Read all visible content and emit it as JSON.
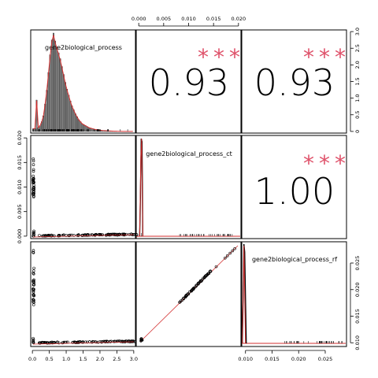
{
  "chart_data": {
    "type": "scatter-matrix",
    "variables": [
      "gene2biological_process",
      "gene2biological_process_ct",
      "gene2biological_process_rf"
    ],
    "correlations": [
      {
        "row": 0,
        "col": 1,
        "value": "0.93",
        "stars": "***"
      },
      {
        "row": 0,
        "col": 2,
        "value": "0.93",
        "stars": "***"
      },
      {
        "row": 1,
        "col": 2,
        "value": "1.00",
        "stars": "***"
      }
    ],
    "axes": {
      "bottom_left": {
        "ticks": [
          "0.0",
          "0.5",
          "1.0",
          "1.5",
          "2.0",
          "2.5",
          "3.0"
        ],
        "range": [
          -0.05,
          3.05
        ]
      },
      "top_middle": {
        "ticks": [
          "0.000",
          "0.005",
          "0.010",
          "0.015",
          "0.020"
        ],
        "range": [
          -0.0005,
          0.0205
        ]
      },
      "left_middle": {
        "ticks": [
          "0.000",
          "0.005",
          "0.010",
          "0.015",
          "0.020"
        ],
        "range": [
          -0.0005,
          0.0205
        ]
      },
      "right_top": {
        "ticks": [
          "0",
          "0.5",
          "1.0",
          "1.5",
          "2.0",
          "2.5",
          "3.0"
        ],
        "range": [
          -0.05,
          3.05
        ]
      },
      "right_bottom": {
        "ticks": [
          "0.010",
          "0.015",
          "0.020",
          "0.025"
        ],
        "range": [
          0.0093,
          0.029
        ]
      },
      "bottom_right": {
        "ticks": [
          "0.010",
          "0.015",
          "0.020",
          "0.025"
        ],
        "range": [
          0.0093,
          0.029
        ]
      }
    },
    "histogram": {
      "x_start": 0.0,
      "bin_width": 0.05,
      "relative_heights": [
        0.03,
        0.03,
        0.32,
        0.04,
        0.06,
        0.1,
        0.16,
        0.28,
        0.42,
        0.6,
        0.78,
        0.93,
        1.0,
        0.92,
        0.86,
        0.8,
        0.74,
        0.66,
        0.58,
        0.5,
        0.43,
        0.37,
        0.31,
        0.26,
        0.22,
        0.18,
        0.15,
        0.12,
        0.1,
        0.08,
        0.07,
        0.06,
        0.05,
        0.04,
        0.035,
        0.03,
        0.025,
        0.02,
        0.018,
        0.015,
        0.012,
        0.01,
        0.009,
        0.008,
        0.007,
        0.006,
        0.005,
        0.004,
        0.003,
        0.003,
        0.002,
        0.002,
        0.002,
        0.001,
        0.001,
        0.001,
        0.001,
        0.001,
        0.001,
        0.001
      ]
    },
    "density_ct_peak": 0.0005,
    "density_rf_peak": 0.0097,
    "colors": {
      "points": "#000000",
      "smooth": "#d32f2f",
      "stars": "#df536b",
      "bars": "#808080"
    },
    "grid": false
  }
}
